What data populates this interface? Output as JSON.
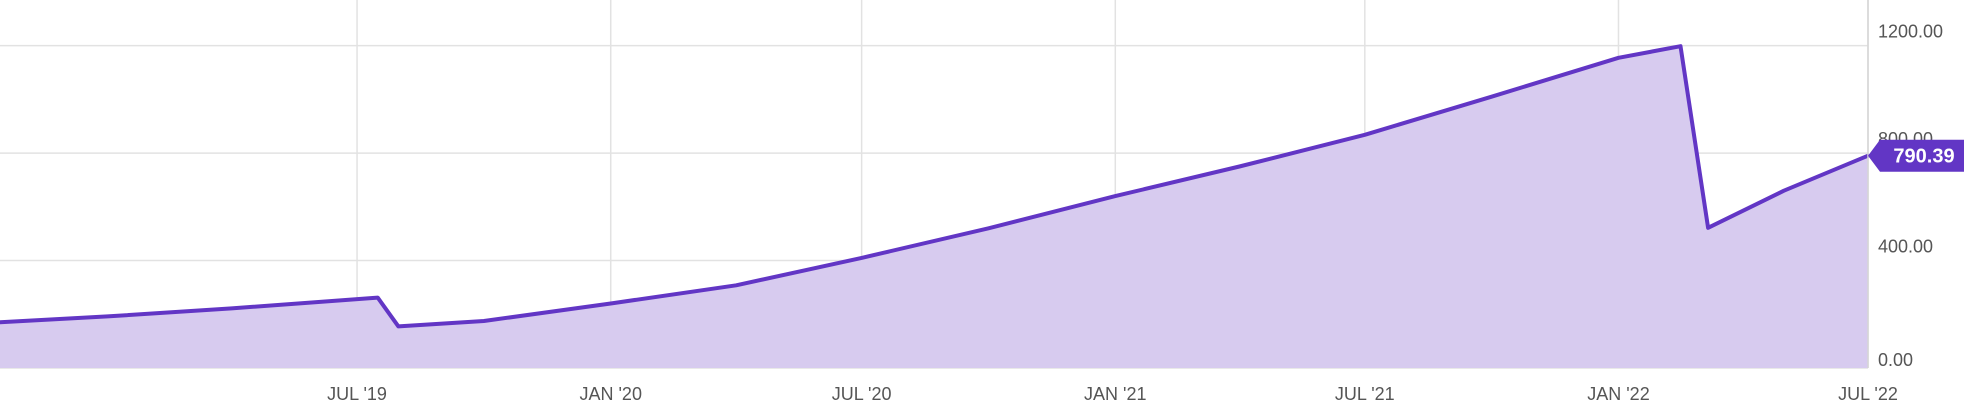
{
  "chart_data": {
    "type": "area",
    "title": "",
    "xlabel": "",
    "ylabel": "",
    "ylim": [
      0,
      1200
    ],
    "xlim": [
      "2018-10-15",
      "2022-07-01"
    ],
    "y_ticks": [
      {
        "value": 0,
        "label": "0.00"
      },
      {
        "value": 400,
        "label": "400.00"
      },
      {
        "value": 800,
        "label": "800.00"
      },
      {
        "value": 1200,
        "label": "1200.00"
      }
    ],
    "x_ticks": [
      {
        "date": "2019-07-01",
        "label": "JUL '19"
      },
      {
        "date": "2020-01-01",
        "label": "JAN '20"
      },
      {
        "date": "2020-07-01",
        "label": "JUL '20"
      },
      {
        "date": "2021-01-01",
        "label": "JAN '21"
      },
      {
        "date": "2021-07-01",
        "label": "JUL '21"
      },
      {
        "date": "2022-01-01",
        "label": "JAN '22"
      },
      {
        "date": "2022-07-01",
        "label": "JUL '22"
      }
    ],
    "grid": true,
    "series": [
      {
        "color": "#6236c5",
        "fill_color": "#d7cbef",
        "points": [
          {
            "x": "2018-10-15",
            "y": 170
          },
          {
            "x": "2019-01-01",
            "y": 192
          },
          {
            "x": "2019-04-01",
            "y": 222
          },
          {
            "x": "2019-07-16",
            "y": 262
          },
          {
            "x": "2019-07-31",
            "y": 155
          },
          {
            "x": "2019-10-01",
            "y": 175
          },
          {
            "x": "2020-01-01",
            "y": 240
          },
          {
            "x": "2020-04-01",
            "y": 308
          },
          {
            "x": "2020-07-01",
            "y": 410
          },
          {
            "x": "2020-10-01",
            "y": 520
          },
          {
            "x": "2021-01-01",
            "y": 640
          },
          {
            "x": "2021-04-01",
            "y": 750
          },
          {
            "x": "2021-07-01",
            "y": 868
          },
          {
            "x": "2021-10-01",
            "y": 1010
          },
          {
            "x": "2022-01-01",
            "y": 1155
          },
          {
            "x": "2022-02-15",
            "y": 1198
          },
          {
            "x": "2022-03-07",
            "y": 522
          },
          {
            "x": "2022-05-01",
            "y": 660
          },
          {
            "x": "2022-07-01",
            "y": 790.39
          }
        ]
      }
    ],
    "last_value_label": "790.39"
  }
}
